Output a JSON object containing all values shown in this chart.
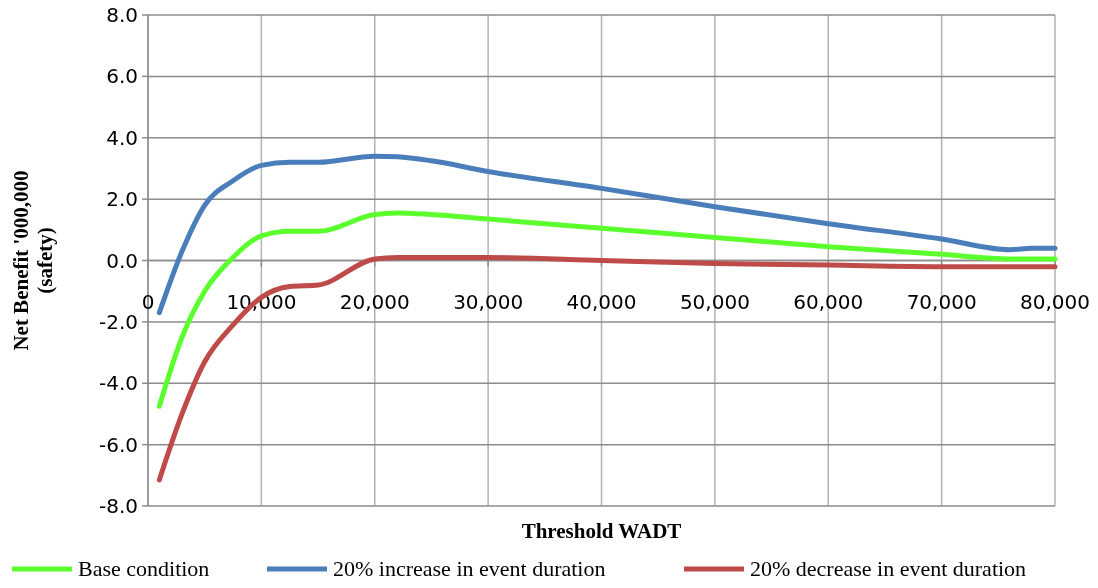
{
  "chart_data": {
    "type": "line",
    "xlabel": "Threshold WADT",
    "ylabel": "Net Benefit '000,000\n(safety)",
    "xlim": [
      0,
      80000
    ],
    "ylim": [
      -8,
      8
    ],
    "xticks": [
      0,
      {
        "value": 10000,
        "label": "10,000"
      },
      {
        "value": 20000,
        "label": "20,000"
      },
      {
        "value": 30000,
        "label": "30,000"
      },
      {
        "value": 40000,
        "label": "40,000"
      },
      {
        "value": 50000,
        "label": "50,000"
      },
      {
        "value": 60000,
        "label": "60,000"
      },
      {
        "value": 70000,
        "label": "70,000"
      },
      {
        "value": 80000,
        "label": "80,000"
      }
    ],
    "yticks": [
      {
        "value": -8,
        "label": "-8.0"
      },
      {
        "value": -6,
        "label": "-6.0"
      },
      {
        "value": -4,
        "label": "-4.0"
      },
      {
        "value": -2,
        "label": "-2.0"
      },
      {
        "value": 0,
        "label": "0.0"
      },
      {
        "value": 2,
        "label": "2.0"
      },
      {
        "value": 4,
        "label": "4.0"
      },
      {
        "value": 6,
        "label": "6.0"
      },
      {
        "value": 8,
        "label": "8.0"
      }
    ],
    "grid": true,
    "legend": "bottom",
    "marker": "none",
    "line_style": "solid",
    "x": [
      1000,
      3000,
      5000,
      7500,
      10000,
      12500,
      15000,
      20000,
      22000,
      25000,
      30000,
      40000,
      50000,
      60000,
      70000,
      76000,
      78000,
      80000
    ],
    "series": [
      {
        "name": "Base condition",
        "color": "#5cff2e",
        "values": [
          -4.75,
          -2.5,
          -1.0,
          0.1,
          0.8,
          0.95,
          0.95,
          1.5,
          1.55,
          1.5,
          1.35,
          1.05,
          0.75,
          0.45,
          0.2,
          0.05,
          0.05,
          0.05
        ]
      },
      {
        "name": "20% increase in event duration",
        "color": "#4a7ebb",
        "values": [
          -1.7,
          0.3,
          1.8,
          2.6,
          3.1,
          3.2,
          3.2,
          3.4,
          3.38,
          3.25,
          2.9,
          2.35,
          1.75,
          1.2,
          0.7,
          0.35,
          0.4,
          0.4
        ]
      },
      {
        "name": "20% decrease in event duration",
        "color": "#be4b48",
        "values": [
          -7.15,
          -5.0,
          -3.3,
          -2.1,
          -1.2,
          -0.85,
          -0.8,
          0.05,
          0.1,
          0.1,
          0.1,
          0.0,
          -0.1,
          -0.15,
          -0.2,
          -0.2,
          -0.2,
          -0.2
        ]
      }
    ]
  }
}
